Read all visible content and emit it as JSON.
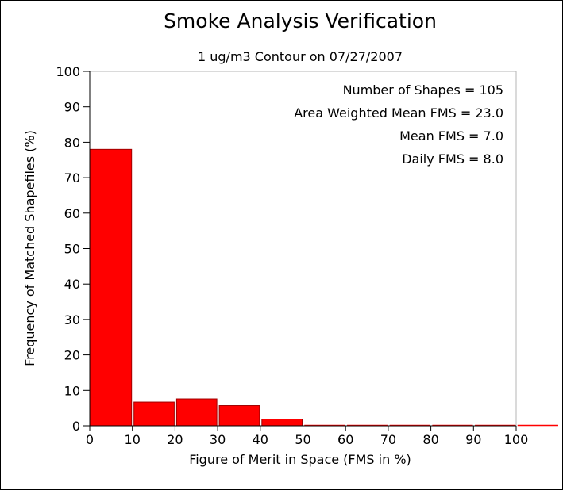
{
  "chart_data": {
    "type": "bar",
    "title": "Smoke Analysis Verification",
    "subtitle": "1 ug/m3 Contour on 07/27/2007",
    "xlabel": "Figure of Merit in Space (FMS in %)",
    "ylabel": "Frequency of Matched Shapefiles (%)",
    "xlim": [
      0,
      100
    ],
    "ylim": [
      0,
      100
    ],
    "xticks": [
      "0",
      "10",
      "20",
      "30",
      "40",
      "50",
      "60",
      "70",
      "80",
      "90",
      "100"
    ],
    "yticks": [
      "0",
      "10",
      "20",
      "30",
      "40",
      "50",
      "60",
      "70",
      "80",
      "90",
      "100"
    ],
    "bins": [
      {
        "from": 0,
        "to": 10,
        "value": 78
      },
      {
        "from": 10,
        "to": 20,
        "value": 6.7
      },
      {
        "from": 20,
        "to": 30,
        "value": 7.6
      },
      {
        "from": 30,
        "to": 40,
        "value": 5.7
      },
      {
        "from": 40,
        "to": 50,
        "value": 1.9
      },
      {
        "from": 50,
        "to": 60,
        "value": 0
      },
      {
        "from": 60,
        "to": 70,
        "value": 0
      },
      {
        "from": 70,
        "to": 80,
        "value": 0
      },
      {
        "from": 80,
        "to": 90,
        "value": 0
      },
      {
        "from": 90,
        "to": 100,
        "value": 0
      },
      {
        "from": 100,
        "to": 110,
        "value": 0
      }
    ],
    "bar_color": "#ff0000",
    "bar_stroke_color": "#a00000",
    "grid": false,
    "annotations": [
      "Number of Shapes = 105",
      "Area Weighted Mean FMS = 23.0",
      "Mean FMS = 7.0",
      "Daily FMS = 8.0"
    ]
  }
}
